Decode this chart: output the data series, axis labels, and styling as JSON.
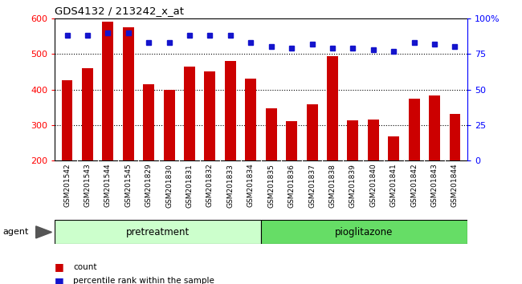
{
  "title": "GDS4132 / 213242_x_at",
  "categories": [
    "GSM201542",
    "GSM201543",
    "GSM201544",
    "GSM201545",
    "GSM201829",
    "GSM201830",
    "GSM201831",
    "GSM201832",
    "GSM201833",
    "GSM201834",
    "GSM201835",
    "GSM201836",
    "GSM201837",
    "GSM201838",
    "GSM201839",
    "GSM201840",
    "GSM201841",
    "GSM201842",
    "GSM201843",
    "GSM201844"
  ],
  "bar_values": [
    425,
    460,
    590,
    575,
    415,
    400,
    465,
    450,
    480,
    430,
    348,
    310,
    358,
    493,
    313,
    315,
    268,
    375,
    383,
    332
  ],
  "dot_values": [
    88,
    88,
    90,
    90,
    83,
    83,
    88,
    88,
    88,
    83,
    80,
    79,
    82,
    79,
    79,
    78,
    77,
    83,
    82,
    80
  ],
  "bar_color": "#cc0000",
  "dot_color": "#1414cc",
  "ylim_left": [
    200,
    600
  ],
  "ylim_right": [
    0,
    100
  ],
  "yticks_left": [
    200,
    300,
    400,
    500,
    600
  ],
  "yticks_right": [
    0,
    25,
    50,
    75,
    100
  ],
  "ytick_labels_right": [
    "0",
    "25",
    "50",
    "75",
    "100%"
  ],
  "group1_label": "pretreatment",
  "group2_label": "pioglitazone",
  "agent_label": "agent",
  "legend_count": "count",
  "legend_percentile": "percentile rank within the sample",
  "bar_bottom": 200,
  "group1_color": "#ccffcc",
  "group2_color": "#66dd66",
  "xtick_bg": "#d8d8d8"
}
